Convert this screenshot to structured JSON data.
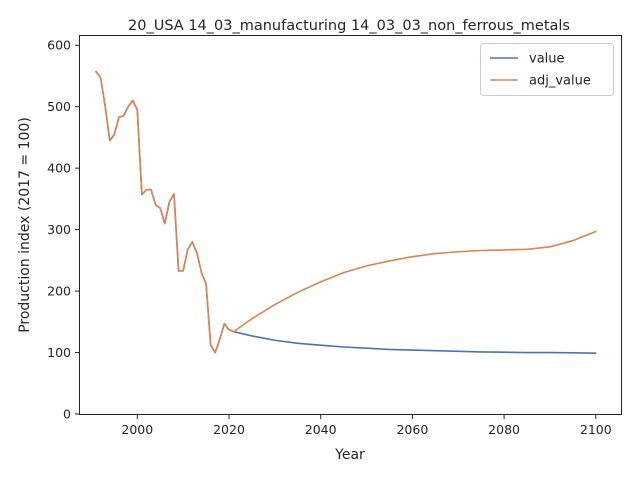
{
  "chart_data": {
    "type": "line",
    "title": "20_USA 14_03_manufacturing 14_03_03_non_ferrous_metals",
    "xlabel": "Year",
    "ylabel": "Production index (2017 = 100)",
    "xlim": [
      1987.5,
      2105.5
    ],
    "ylim": [
      0,
      615
    ],
    "xticks": [
      2000,
      2020,
      2040,
      2060,
      2080,
      2100
    ],
    "yticks": [
      0,
      100,
      200,
      300,
      400,
      500,
      600
    ],
    "grid": false,
    "legend_position": "top-right",
    "series": [
      {
        "name": "value",
        "color": "#4c72b0",
        "x": [
          1991,
          1992,
          1993,
          1994,
          1995,
          1996,
          1997,
          1998,
          1999,
          2000,
          2001,
          2002,
          2003,
          2004,
          2005,
          2006,
          2007,
          2008,
          2009,
          2010,
          2011,
          2012,
          2013,
          2014,
          2015,
          2016,
          2017,
          2018,
          2019,
          2020,
          2021,
          2025,
          2030,
          2035,
          2040,
          2045,
          2050,
          2055,
          2060,
          2065,
          2070,
          2075,
          2080,
          2085,
          2090,
          2095,
          2100
        ],
        "y": [
          557,
          547,
          500,
          445,
          455,
          483,
          485,
          500,
          510,
          495,
          357,
          365,
          365,
          340,
          335,
          310,
          345,
          358,
          233,
          233,
          268,
          280,
          262,
          230,
          212,
          112,
          100,
          122,
          147,
          137,
          134,
          127,
          120,
          115,
          112,
          109,
          107,
          105,
          104,
          103,
          102,
          101,
          100.5,
          100,
          100,
          99.5,
          99
        ]
      },
      {
        "name": "adj_value",
        "color": "#dd8452",
        "x": [
          1991,
          1992,
          1993,
          1994,
          1995,
          1996,
          1997,
          1998,
          1999,
          2000,
          2001,
          2002,
          2003,
          2004,
          2005,
          2006,
          2007,
          2008,
          2009,
          2010,
          2011,
          2012,
          2013,
          2014,
          2015,
          2016,
          2017,
          2018,
          2019,
          2020,
          2021,
          2025,
          2030,
          2035,
          2040,
          2045,
          2050,
          2055,
          2060,
          2065,
          2070,
          2075,
          2080,
          2085,
          2090,
          2095,
          2100
        ],
        "y": [
          557,
          547,
          500,
          445,
          455,
          483,
          485,
          500,
          510,
          495,
          357,
          365,
          365,
          340,
          335,
          310,
          345,
          358,
          233,
          233,
          268,
          280,
          262,
          230,
          212,
          112,
          100,
          122,
          147,
          137,
          134,
          155,
          178,
          198,
          215,
          230,
          241,
          249,
          256,
          261,
          264,
          266,
          267,
          268,
          272,
          282,
          297
        ]
      }
    ]
  }
}
